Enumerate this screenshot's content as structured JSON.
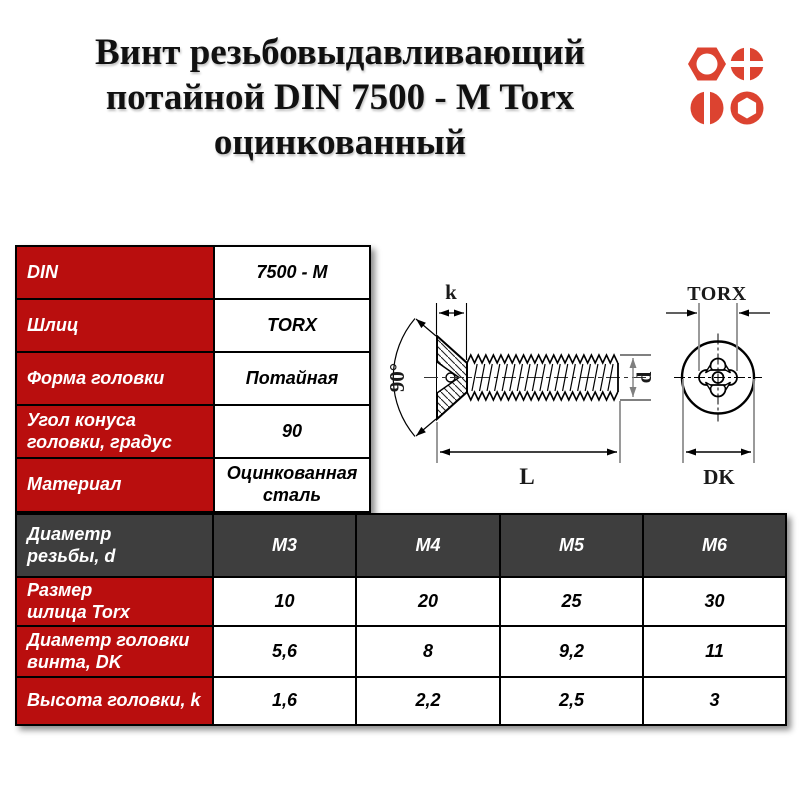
{
  "colors": {
    "table_red": "#b90e0e",
    "header_dark": "#3e3e3e",
    "logo_red": "#dc4330"
  },
  "header": {
    "title_lines": [
      "Винт резьбовыдавливающий",
      "потайной DIN 7500 - M Torx",
      "оцинкованный"
    ]
  },
  "spec_table": {
    "rows": [
      {
        "label": "DIN",
        "value": "7500 - M"
      },
      {
        "label": "Шлиц",
        "value": "TORX"
      },
      {
        "label": "Форма головки",
        "value": "Потайная"
      },
      {
        "label": "Угол конуса\nголовки, градус",
        "value": "90"
      },
      {
        "label": "Материал",
        "value": "Оцинкованная\nсталь"
      }
    ]
  },
  "drawing": {
    "k": "k",
    "angle": "90°",
    "L": "L",
    "d": "d",
    "torx": "TORX",
    "dk": "DK"
  },
  "size_table": {
    "corner": "Диаметр\nрезьбы, d",
    "columns": [
      "M3",
      "M4",
      "M5",
      "M6"
    ],
    "rows": [
      {
        "label": "Размер\nшлица Torx",
        "values": [
          "10",
          "20",
          "25",
          "30"
        ]
      },
      {
        "label": "Диаметр головки\nвинта, DK",
        "values": [
          "5,6",
          "8",
          "9,2",
          "11"
        ]
      },
      {
        "label": "Высота головки, k",
        "values": [
          "1,6",
          "2,2",
          "2,5",
          "3"
        ]
      }
    ]
  }
}
